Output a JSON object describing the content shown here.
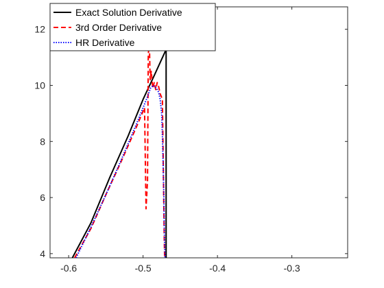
{
  "chart_data": {
    "type": "line",
    "title": "",
    "xlabel": "",
    "ylabel": "",
    "xlim": [
      -0.625,
      -0.225
    ],
    "ylim": [
      3.85,
      12.8
    ],
    "xticks": [
      -0.6,
      -0.5,
      -0.4,
      -0.3
    ],
    "xtick_labels": [
      "-0.6",
      "-0.5",
      "-0.4",
      "-0.3"
    ],
    "yticks": [
      4,
      6,
      8,
      10,
      12
    ],
    "ytick_labels": [
      "4",
      "6",
      "8",
      "10",
      "12"
    ],
    "grid": false,
    "legend_position": "top-left",
    "series": [
      {
        "name": "Exact Solution Derivative",
        "color": "#000000",
        "style": "solid",
        "x": [
          -0.595,
          -0.57,
          -0.545,
          -0.52,
          -0.5,
          -0.485,
          -0.469,
          -0.469,
          -0.469
        ],
        "y": [
          3.85,
          5.1,
          6.7,
          8.2,
          9.5,
          10.35,
          11.28,
          6.0,
          3.85
        ]
      },
      {
        "name": "3rd Order Derivative",
        "color": "#ff0000",
        "style": "dashed",
        "x": [
          -0.592,
          -0.57,
          -0.55,
          -0.53,
          -0.51,
          -0.498,
          -0.496,
          -0.494,
          -0.493,
          -0.4915,
          -0.4905,
          -0.489,
          -0.487,
          -0.485,
          -0.483,
          -0.481,
          -0.479,
          -0.477,
          -0.474,
          -0.473,
          -0.472,
          -0.4715,
          -0.471
        ],
        "y": [
          3.85,
          4.9,
          6.1,
          7.25,
          8.45,
          9.2,
          5.6,
          6.6,
          11.1,
          11.55,
          10.2,
          10.5,
          9.9,
          10.1,
          9.85,
          10.1,
          9.95,
          9.7,
          9.5,
          7.5,
          5.5,
          4.5,
          3.85
        ]
      },
      {
        "name": "HR Derivative",
        "color": "#0000ff",
        "style": "dotted",
        "x": [
          -0.59,
          -0.57,
          -0.55,
          -0.53,
          -0.51,
          -0.5,
          -0.494,
          -0.49,
          -0.486,
          -0.482,
          -0.479,
          -0.477,
          -0.475,
          -0.474,
          -0.473,
          -0.472,
          -0.4715,
          -0.471,
          -0.4705
        ],
        "y": [
          3.85,
          4.95,
          6.1,
          7.3,
          8.55,
          9.2,
          9.6,
          9.9,
          10.0,
          9.9,
          9.75,
          9.5,
          9.0,
          8.2,
          7.2,
          6.0,
          5.0,
          4.3,
          3.85
        ]
      }
    ]
  }
}
